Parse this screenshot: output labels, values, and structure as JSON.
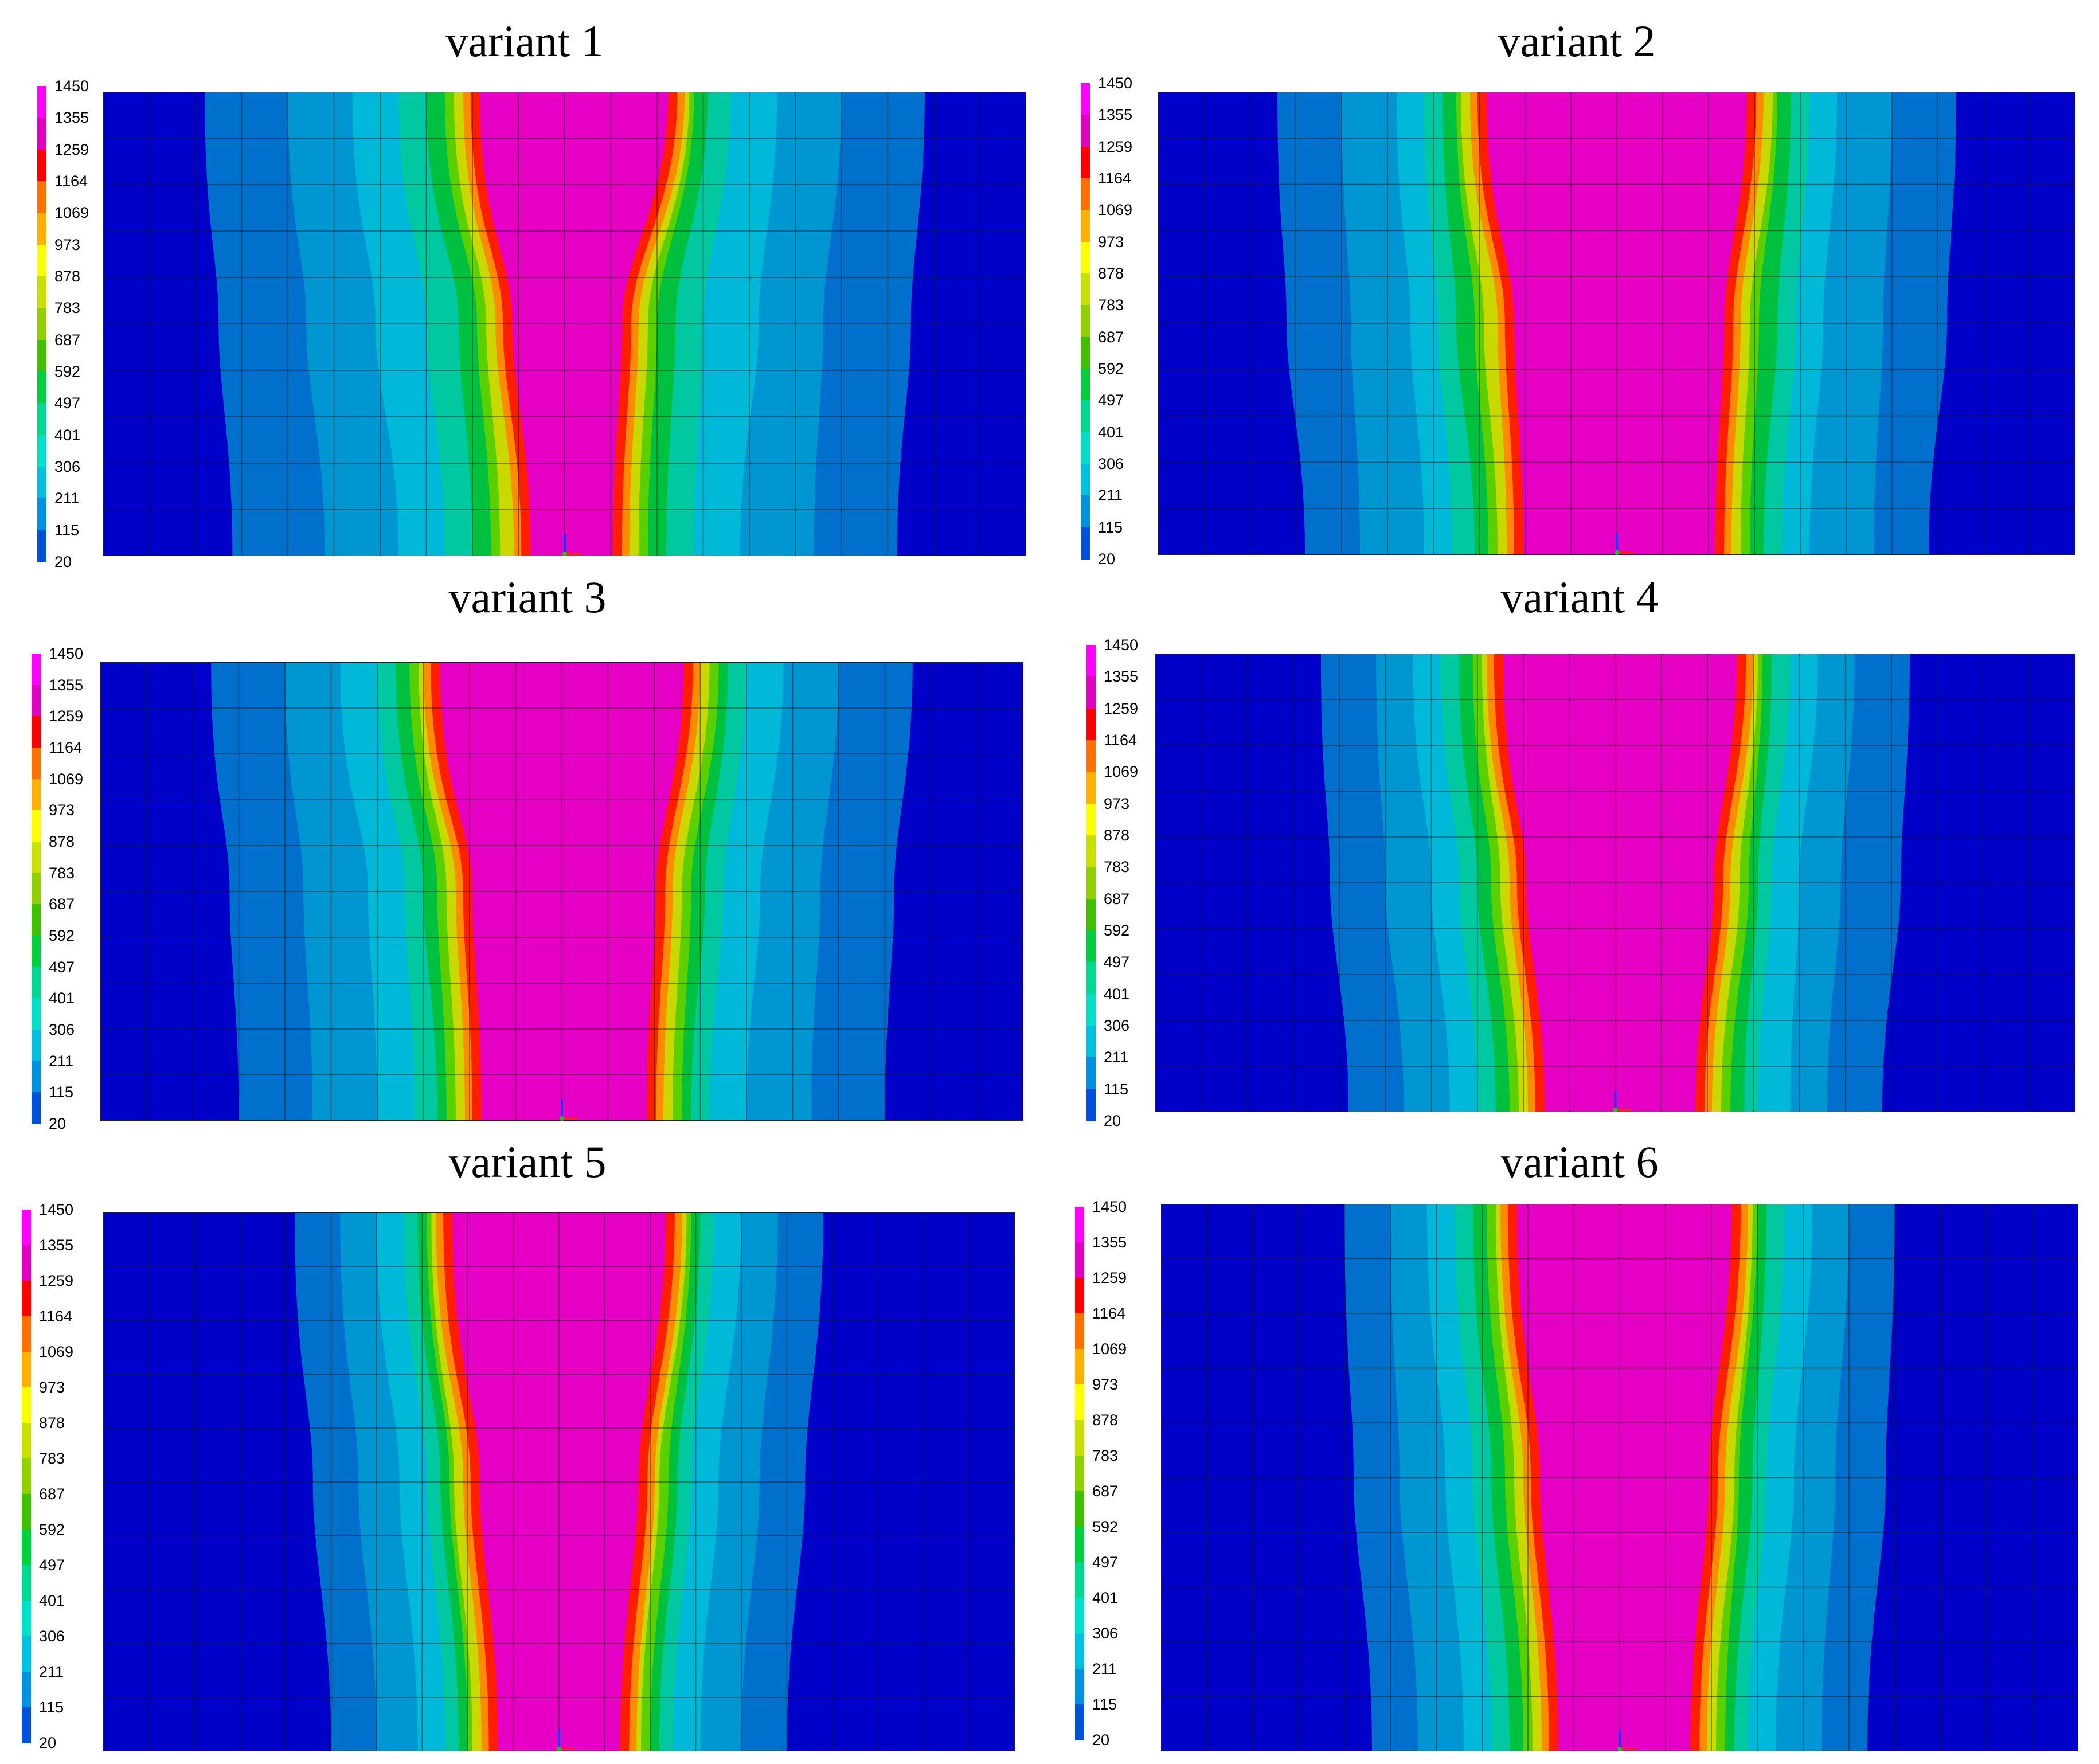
{
  "legend": {
    "values": [
      "1450",
      "1355",
      "1259",
      "1164",
      "1069",
      "973",
      "878",
      "783",
      "687",
      "592",
      "497",
      "401",
      "306",
      "211",
      "115",
      "20"
    ],
    "colors": [
      "#ff00ff",
      "#e000c0",
      "#ff0000",
      "#ff7000",
      "#ffb000",
      "#ffff00",
      "#c8e000",
      "#90d000",
      "#40c000",
      "#00d040",
      "#00d890",
      "#00e0c8",
      "#00c0e0",
      "#0090e0",
      "#0050e0",
      "#0000d0"
    ]
  },
  "contour_colors": {
    "background": "#0000c8",
    "band_1": "#0070cc",
    "band_2": "#0096d2",
    "band_3": "#00b8d8",
    "band_4": "#00c8a0",
    "band_5": "#00c040",
    "band_6": "#5ad000",
    "band_7": "#c8d800",
    "band_8": "#ff8c00",
    "band_9": "#ff1e00",
    "core": "#e600c3"
  },
  "panels": [
    {
      "title": "variant 1"
    },
    {
      "title": "variant 2"
    },
    {
      "title": "variant 3"
    },
    {
      "title": "variant 4"
    },
    {
      "title": "variant 5"
    },
    {
      "title": "variant 6"
    }
  ]
}
